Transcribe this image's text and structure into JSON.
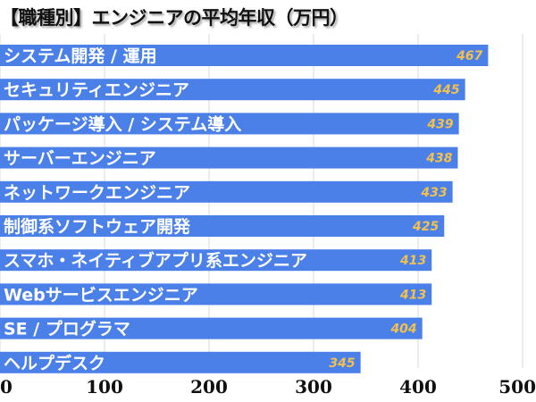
{
  "chart_data": {
    "type": "bar",
    "orientation": "horizontal",
    "title": "【職種別】エンジニアの平均年収（万円）",
    "categories": [
      "システム開発 / 運用",
      "セキュリティエンジニア",
      "パッケージ導入 / システム導入",
      "サーバーエンジニア",
      "ネットワークエンジニア",
      "制御系ソフトウェア開発",
      "スマホ・ネイティブアプリ系エンジニア",
      "Webサービスエンジニア",
      "SE / プログラマ",
      "ヘルプデスク"
    ],
    "values": [
      467,
      445,
      439,
      438,
      433,
      425,
      413,
      413,
      404,
      345
    ],
    "data_labels": [
      "467",
      "445",
      "439",
      "438",
      "433",
      "425",
      "413",
      "413",
      "404",
      "345"
    ],
    "xlim": [
      0,
      500
    ],
    "x_ticks": [
      0,
      100,
      200,
      300,
      400,
      500
    ],
    "x_tick_labels": [
      "0",
      "100",
      "200",
      "300",
      "400",
      "500"
    ],
    "xlabel": "",
    "ylabel": "",
    "grid": "vertical",
    "legend": "none",
    "colors": {
      "bar": "#4a80e8",
      "bar_label": "#ffffff",
      "data_label": "#f2c14e",
      "grid": "#d8d8d8",
      "title": "#111111"
    }
  }
}
